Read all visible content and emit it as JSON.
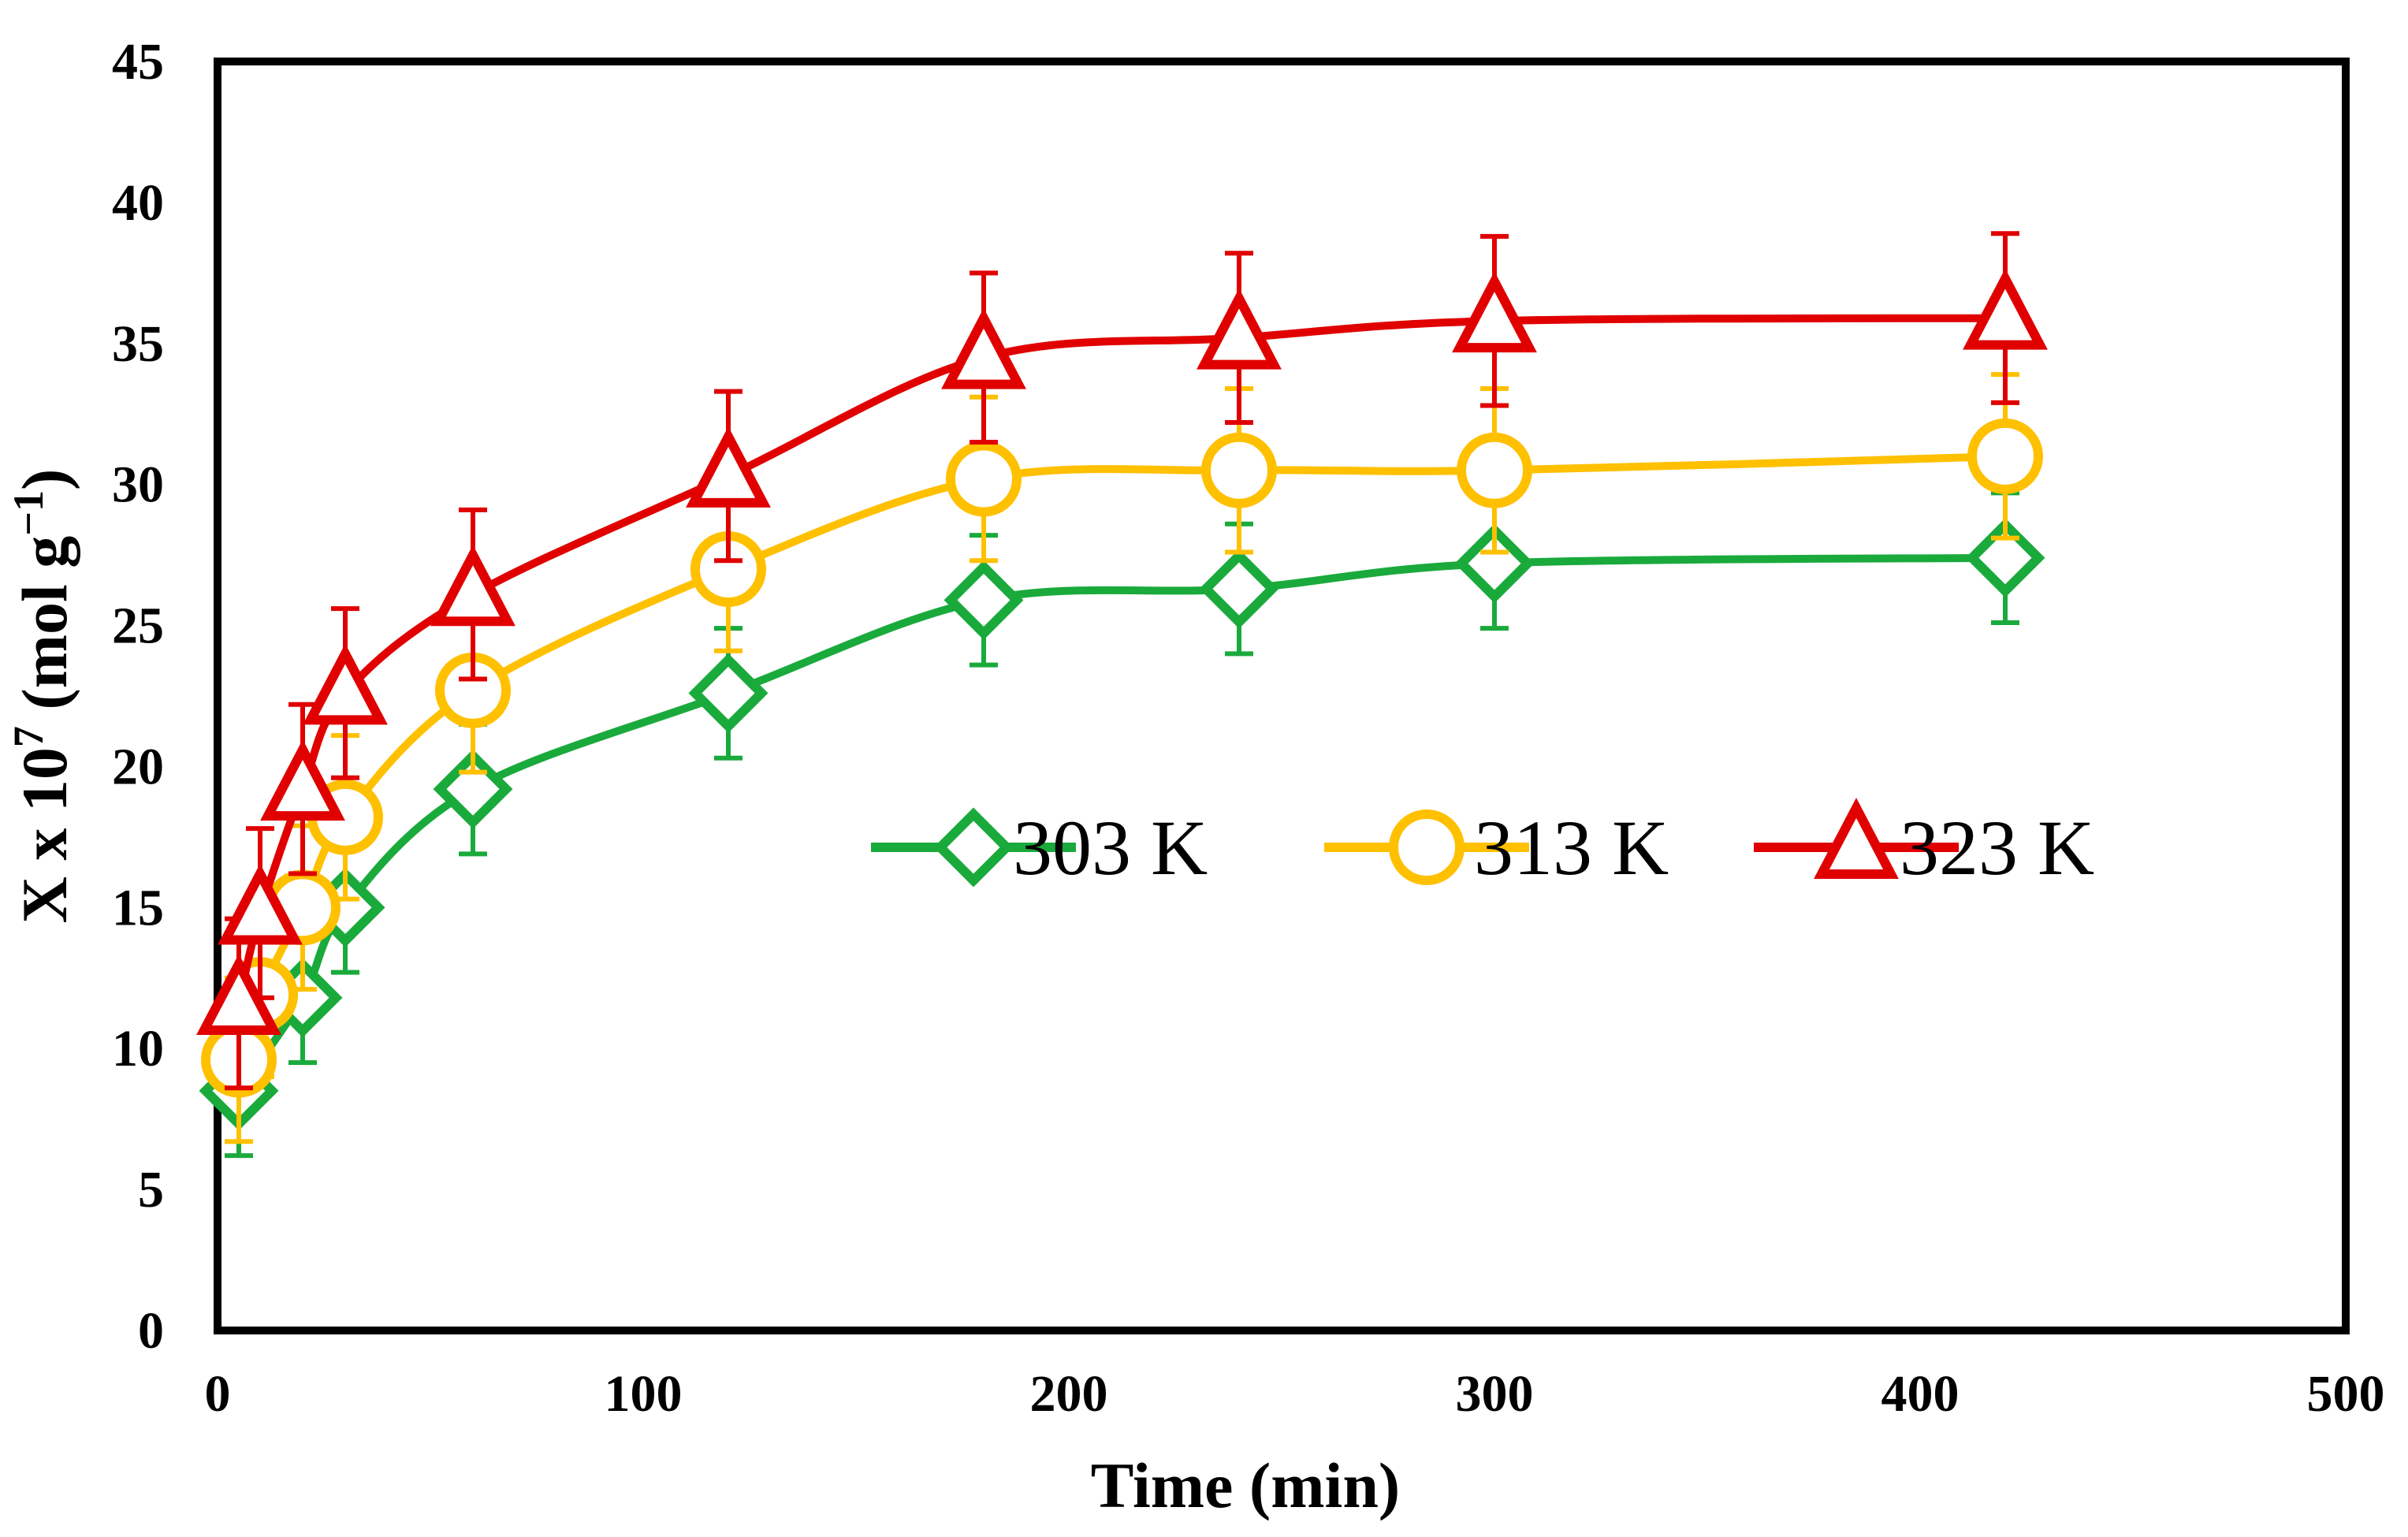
{
  "chart_data": {
    "type": "line",
    "title": "",
    "xlabel": "Time (min)",
    "ylabel": {
      "prefix": "X x 10",
      "prefix_sup": "7",
      "unit": " (mol g",
      "unit_sup": "−1",
      "close": ")"
    },
    "xlim": [
      0,
      500
    ],
    "ylim": [
      0,
      45
    ],
    "xticks": [
      0,
      100,
      200,
      300,
      400,
      500
    ],
    "yticks": [
      0,
      5,
      10,
      15,
      20,
      25,
      30,
      35,
      40,
      45
    ],
    "legend_position": "center-right",
    "series": [
      {
        "name": "303  K",
        "color": "#1aaa3c",
        "marker": "diamond",
        "x": [
          5,
          20,
          30,
          60,
          120,
          180,
          240,
          300,
          420
        ],
        "y": [
          8.5,
          11.8,
          15.0,
          19.2,
          22.6,
          25.9,
          26.3,
          27.2,
          27.4
        ],
        "err": [
          2.3,
          2.3,
          2.3,
          2.3,
          2.3,
          2.3,
          2.3,
          2.3,
          2.3
        ]
      },
      {
        "name": "313 K",
        "color": "#ffc000",
        "marker": "circle",
        "x": [
          5,
          10,
          20,
          30,
          60,
          120,
          180,
          240,
          300,
          420
        ],
        "y": [
          9.6,
          11.9,
          15.0,
          18.2,
          22.7,
          27.0,
          30.2,
          30.5,
          30.5,
          31.0
        ],
        "err": [
          2.9,
          2.9,
          2.9,
          2.9,
          2.9,
          2.9,
          2.9,
          2.9,
          2.9,
          2.9
        ]
      },
      {
        "name": "323 K",
        "color": "#e00000",
        "marker": "triangle",
        "x": [
          5,
          10,
          20,
          30,
          60,
          120,
          180,
          240,
          300,
          420
        ],
        "y": [
          11.6,
          14.8,
          19.2,
          22.6,
          26.1,
          30.3,
          34.5,
          35.2,
          35.8,
          35.9
        ],
        "err": [
          3.0,
          3.0,
          3.0,
          3.0,
          3.0,
          3.0,
          3.0,
          3.0,
          3.0,
          3.0
        ]
      }
    ]
  }
}
